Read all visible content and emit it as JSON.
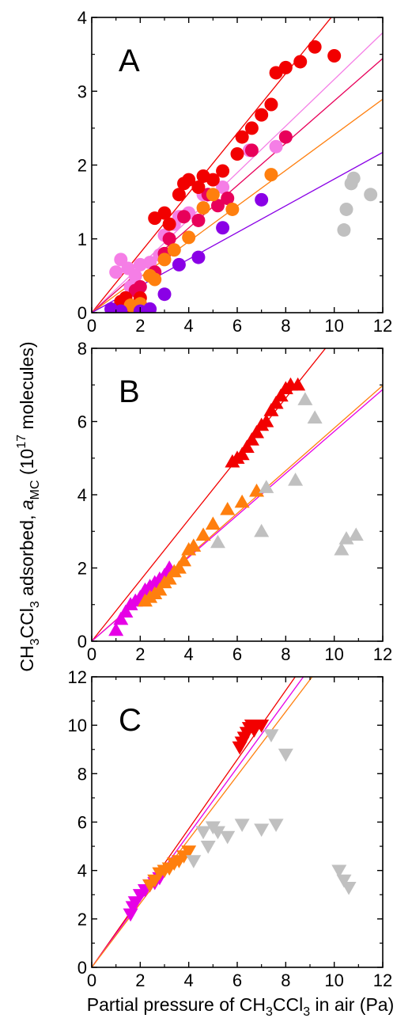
{
  "figure": {
    "ylabel": {
      "pre": "CH",
      "sub1": "3",
      "mid": "CCl",
      "sub2": "3",
      "post": " adsorbed, ",
      "symbol": "a",
      "symbol_sub": "MC",
      "unit_pre": " (10",
      "unit_sup": "17",
      "unit_post": " molecules)"
    },
    "xlabel": {
      "pre": "Partial pressure of CH",
      "sub1": "3",
      "mid": "CCl",
      "sub2": "3",
      "post": " in air (Pa)"
    }
  },
  "chart_data": [
    {
      "type": "scatter",
      "panel_label": "A",
      "marker": "circle",
      "xlim": [
        0,
        12
      ],
      "ylim": [
        0,
        4
      ],
      "xticks": [
        0,
        2,
        4,
        6,
        8,
        10,
        12
      ],
      "yticks": [
        0,
        1,
        2,
        3,
        4
      ],
      "colors": {
        "red": "#f20000",
        "crimson": "#e8005a",
        "pink": "#f57ee6",
        "orange": "#ff7f0e",
        "violet": "#8a00e6",
        "gray": "#c0c0c0"
      },
      "lines": [
        {
          "color": "red",
          "slope": 0.405
        },
        {
          "color": "pink",
          "slope": 0.316
        },
        {
          "color": "crimson",
          "slope": 0.287
        },
        {
          "color": "orange",
          "slope": 0.241
        },
        {
          "color": "violet",
          "slope": 0.181
        }
      ],
      "series": [
        {
          "color": "pink",
          "points": [
            [
              1.0,
              0.55
            ],
            [
              1.2,
              0.72
            ],
            [
              1.5,
              0.6
            ],
            [
              1.6,
              0.35
            ],
            [
              1.8,
              0.5
            ],
            [
              2.0,
              0.65
            ],
            [
              2.4,
              0.68
            ],
            [
              2.8,
              0.78
            ],
            [
              3.0,
              1.05
            ],
            [
              3.4,
              1.2
            ],
            [
              3.6,
              1.3
            ],
            [
              4.0,
              1.35
            ],
            [
              4.6,
              1.6
            ],
            [
              5.4,
              1.7
            ],
            [
              6.5,
              2.2
            ],
            [
              7.6,
              2.25
            ]
          ]
        },
        {
          "color": "crimson",
          "points": [
            [
              1.2,
              0.1
            ],
            [
              1.4,
              0.2
            ],
            [
              1.6,
              0.05
            ],
            [
              1.8,
              0.3
            ],
            [
              2.0,
              0.35
            ],
            [
              2.4,
              0.5
            ],
            [
              2.6,
              0.55
            ],
            [
              3.0,
              0.8
            ],
            [
              3.2,
              1.0
            ],
            [
              3.8,
              1.3
            ],
            [
              4.4,
              1.25
            ],
            [
              4.8,
              1.6
            ],
            [
              5.2,
              1.45
            ],
            [
              5.6,
              1.55
            ],
            [
              6.6,
              2.2
            ],
            [
              8.0,
              2.38
            ]
          ]
        },
        {
          "color": "red",
          "points": [
            [
              1.2,
              0.15
            ],
            [
              1.4,
              0.2
            ],
            [
              1.6,
              0.05
            ],
            [
              2.0,
              0.2
            ],
            [
              2.6,
              1.28
            ],
            [
              3.0,
              1.35
            ],
            [
              3.2,
              1.2
            ],
            [
              3.6,
              1.6
            ],
            [
              3.8,
              1.75
            ],
            [
              4.0,
              1.8
            ],
            [
              4.4,
              1.7
            ],
            [
              4.6,
              1.85
            ],
            [
              5.0,
              1.8
            ],
            [
              5.4,
              1.92
            ],
            [
              6.0,
              2.15
            ],
            [
              6.2,
              2.38
            ],
            [
              6.6,
              2.5
            ],
            [
              7.0,
              2.68
            ],
            [
              7.4,
              2.82
            ],
            [
              7.6,
              3.25
            ],
            [
              8.0,
              3.32
            ],
            [
              8.6,
              3.4
            ],
            [
              9.2,
              3.6
            ],
            [
              10.0,
              3.48
            ]
          ]
        },
        {
          "color": "orange",
          "points": [
            [
              1.6,
              0.1
            ],
            [
              1.8,
              0.05
            ],
            [
              2.0,
              0.12
            ],
            [
              2.4,
              0.5
            ],
            [
              2.6,
              0.45
            ],
            [
              3.0,
              0.72
            ],
            [
              3.4,
              0.85
            ],
            [
              4.0,
              1.02
            ],
            [
              4.6,
              1.42
            ],
            [
              5.0,
              1.6
            ],
            [
              5.8,
              1.4
            ],
            [
              7.4,
              1.87
            ]
          ]
        },
        {
          "color": "violet",
          "points": [
            [
              0.8,
              0.05
            ],
            [
              1.2,
              0.02
            ],
            [
              2.0,
              0.02
            ],
            [
              2.4,
              0.05
            ],
            [
              3.0,
              0.25
            ],
            [
              3.6,
              0.65
            ],
            [
              4.4,
              0.75
            ],
            [
              5.4,
              1.15
            ],
            [
              7.0,
              1.53
            ]
          ]
        },
        {
          "color": "gray",
          "points": [
            [
              10.4,
              1.12
            ],
            [
              10.5,
              1.4
            ],
            [
              10.7,
              1.75
            ],
            [
              10.8,
              1.82
            ],
            [
              11.5,
              1.6
            ]
          ]
        }
      ]
    },
    {
      "type": "scatter",
      "panel_label": "B",
      "marker": "triangle-up",
      "xlim": [
        0,
        12
      ],
      "ylim": [
        0,
        8
      ],
      "xticks": [
        0,
        2,
        4,
        6,
        8,
        10,
        12
      ],
      "yticks": [
        0,
        2,
        4,
        6,
        8
      ],
      "colors": {
        "red": "#f20000",
        "magenta": "#e600e6",
        "orange": "#ff7f0e",
        "gray": "#c0c0c0"
      },
      "lines": [
        {
          "color": "red",
          "slope": 0.83
        },
        {
          "color": "orange",
          "slope": 0.582
        },
        {
          "color": "magenta",
          "slope": 0.573
        }
      ],
      "series": [
        {
          "color": "magenta",
          "points": [
            [
              1.0,
              0.3
            ],
            [
              1.2,
              0.6
            ],
            [
              1.4,
              0.8
            ],
            [
              1.6,
              1.0
            ],
            [
              1.8,
              1.1
            ],
            [
              2.0,
              1.2
            ],
            [
              2.2,
              1.4
            ],
            [
              2.4,
              1.5
            ],
            [
              2.6,
              1.6
            ],
            [
              2.8,
              1.7
            ],
            [
              3.0,
              1.8
            ],
            [
              3.2,
              2.0
            ]
          ]
        },
        {
          "color": "orange",
          "points": [
            [
              2.2,
              1.1
            ],
            [
              2.4,
              1.2
            ],
            [
              2.6,
              1.3
            ],
            [
              2.8,
              1.4
            ],
            [
              3.0,
              1.6
            ],
            [
              3.2,
              1.7
            ],
            [
              3.4,
              1.9
            ],
            [
              3.6,
              2.0
            ],
            [
              3.8,
              2.2
            ],
            [
              4.0,
              2.5
            ],
            [
              4.2,
              2.6
            ],
            [
              4.6,
              2.9
            ],
            [
              5.0,
              3.2
            ],
            [
              5.6,
              3.6
            ],
            [
              6.2,
              3.8
            ],
            [
              6.8,
              4.1
            ]
          ]
        },
        {
          "color": "red",
          "points": [
            [
              5.8,
              4.9
            ],
            [
              6.0,
              5.0
            ],
            [
              6.2,
              5.1
            ],
            [
              6.4,
              5.3
            ],
            [
              6.6,
              5.5
            ],
            [
              6.8,
              5.7
            ],
            [
              7.0,
              5.9
            ],
            [
              7.2,
              6.0
            ],
            [
              7.4,
              6.3
            ],
            [
              7.6,
              6.5
            ],
            [
              7.8,
              6.7
            ],
            [
              8.0,
              6.9
            ],
            [
              8.2,
              7.0
            ],
            [
              8.5,
              7.0
            ]
          ]
        },
        {
          "color": "gray",
          "points": [
            [
              5.2,
              2.7
            ],
            [
              7.0,
              3.0
            ],
            [
              7.2,
              4.2
            ],
            [
              8.4,
              4.4
            ],
            [
              8.8,
              6.6
            ],
            [
              9.2,
              6.1
            ],
            [
              10.3,
              2.5
            ],
            [
              10.5,
              2.8
            ],
            [
              10.9,
              2.9
            ]
          ]
        }
      ]
    },
    {
      "type": "scatter",
      "panel_label": "C",
      "marker": "triangle-down",
      "xlim": [
        0,
        12
      ],
      "ylim": [
        0,
        12
      ],
      "xticks": [
        0,
        2,
        4,
        6,
        8,
        10,
        12
      ],
      "yticks": [
        0,
        2,
        4,
        6,
        8,
        10,
        12
      ],
      "colors": {
        "red": "#f20000",
        "magenta": "#e600e6",
        "orange": "#ff7f0e",
        "gray": "#c0c0c0"
      },
      "lines": [
        {
          "color": "red",
          "slope": 1.43
        },
        {
          "color": "magenta",
          "slope": 1.375
        },
        {
          "color": "orange",
          "slope": 1.32
        }
      ],
      "series": [
        {
          "color": "magenta",
          "points": [
            [
              1.6,
              2.2
            ],
            [
              1.7,
              2.5
            ],
            [
              1.8,
              2.7
            ],
            [
              2.0,
              3.0
            ],
            [
              2.2,
              3.2
            ],
            [
              2.4,
              3.4
            ],
            [
              2.6,
              3.5
            ],
            [
              2.8,
              3.7
            ]
          ]
        },
        {
          "color": "orange",
          "points": [
            [
              2.4,
              3.4
            ],
            [
              2.6,
              3.6
            ],
            [
              2.8,
              3.9
            ],
            [
              3.0,
              4.0
            ],
            [
              3.2,
              4.1
            ],
            [
              3.4,
              4.3
            ],
            [
              3.6,
              4.4
            ],
            [
              3.8,
              4.6
            ],
            [
              4.0,
              4.8
            ]
          ]
        },
        {
          "color": "red",
          "points": [
            [
              6.1,
              9.1
            ],
            [
              6.2,
              9.3
            ],
            [
              6.3,
              9.5
            ],
            [
              6.4,
              9.7
            ],
            [
              6.5,
              9.9
            ],
            [
              6.6,
              10.0
            ],
            [
              6.7,
              9.8
            ],
            [
              6.8,
              10.0
            ],
            [
              7.0,
              10.0
            ]
          ]
        },
        {
          "color": "gray",
          "points": [
            [
              4.2,
              4.4
            ],
            [
              4.6,
              5.6
            ],
            [
              4.8,
              5.0
            ],
            [
              5.0,
              5.8
            ],
            [
              5.2,
              5.6
            ],
            [
              5.6,
              5.4
            ],
            [
              6.2,
              5.9
            ],
            [
              7.0,
              5.7
            ],
            [
              7.4,
              9.6
            ],
            [
              7.6,
              5.9
            ],
            [
              8.0,
              8.8
            ],
            [
              10.2,
              4.0
            ],
            [
              10.4,
              3.6
            ],
            [
              10.6,
              3.3
            ]
          ]
        }
      ]
    }
  ]
}
